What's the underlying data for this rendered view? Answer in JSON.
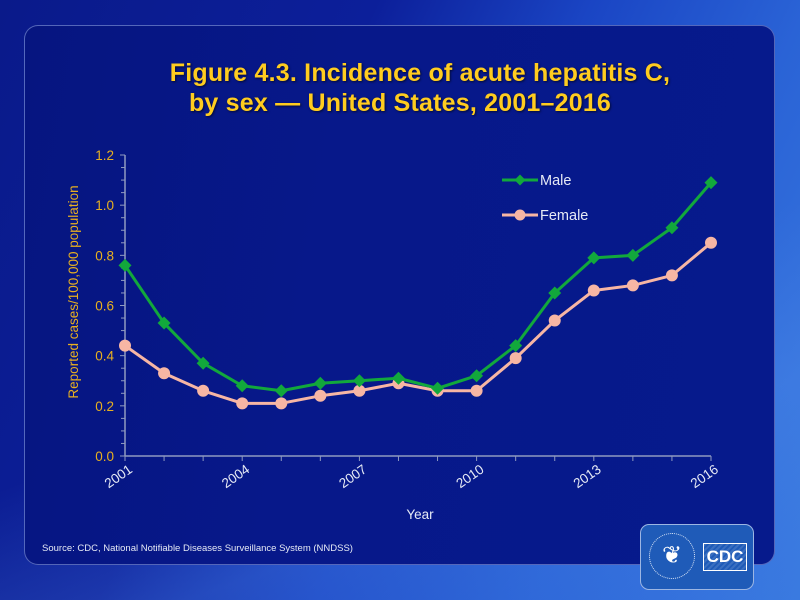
{
  "title": {
    "line1": "Figure 4.3. Incidence of acute hepatitis C,",
    "line2": "by sex — United States, 2001–2016"
  },
  "source": "Source:  CDC, National Notifiable Diseases Surveillance System (NNDSS)",
  "logo": {
    "text": "CDC",
    "seal_icon": "hhs-eagle-icon"
  },
  "colors": {
    "male": "#12a83c",
    "female": "#f7b6a4",
    "title": "#ffcc1f",
    "ytick": "#e8b020",
    "axis": "#8f9ac0",
    "xtick": "#e6eaf5"
  },
  "chart_data": {
    "type": "line",
    "title": "Figure 4.3. Incidence of acute hepatitis C, by sex — United States, 2001–2016",
    "xlabel": "Year",
    "ylabel": "Reported cases/100,000 population",
    "x": [
      2001,
      2002,
      2003,
      2004,
      2005,
      2006,
      2007,
      2008,
      2009,
      2010,
      2011,
      2012,
      2013,
      2014,
      2015,
      2016
    ],
    "x_tick_labels": [
      "2001",
      "2004",
      "2007",
      "2010",
      "2013",
      "2016"
    ],
    "y_tick_labels": [
      "0.0",
      "0.2",
      "0.4",
      "0.6",
      "0.8",
      "1.0",
      "1.2"
    ],
    "ylim": [
      0,
      1.2
    ],
    "y_major_step": 0.2,
    "y_minor_step": 0.05,
    "grid": false,
    "legend_position": "top-right",
    "series": [
      {
        "name": "Male",
        "marker": "diamond",
        "values": [
          0.76,
          0.53,
          0.37,
          0.28,
          0.26,
          0.29,
          0.3,
          0.31,
          0.27,
          0.32,
          0.44,
          0.65,
          0.79,
          0.8,
          0.91,
          1.09
        ]
      },
      {
        "name": "Female",
        "marker": "circle",
        "values": [
          0.44,
          0.33,
          0.26,
          0.21,
          0.21,
          0.24,
          0.26,
          0.29,
          0.26,
          0.26,
          0.39,
          0.54,
          0.66,
          0.68,
          0.72,
          0.85
        ]
      }
    ]
  }
}
